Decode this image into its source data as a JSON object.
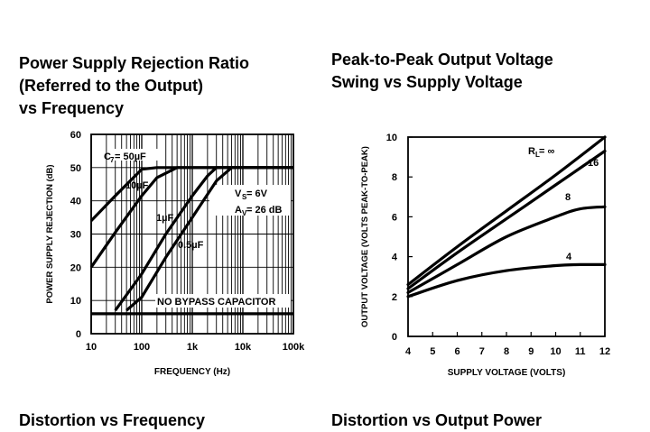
{
  "titles": {
    "psrr": [
      "Power Supply Rejection Ratio",
      "(Referred to the Output)",
      "vs Frequency"
    ],
    "swing": [
      "Peak-to-Peak Output Voltage",
      "Swing vs Supply Voltage"
    ],
    "dist_freq": "Distortion vs Frequency",
    "dist_power": "Distortion vs Output Power"
  },
  "chart_data": [
    {
      "type": "line",
      "title": "Power Supply Rejection Ratio (Referred to the Output) vs Frequency",
      "xlabel": "FREQUENCY (Hz)",
      "ylabel": "POWER SUPPLY REJECTION (dB)",
      "xscale": "log",
      "xlim": [
        10,
        100000
      ],
      "ylim": [
        0,
        60
      ],
      "xticks": [
        10,
        100,
        1000,
        10000,
        100000
      ],
      "xtick_labels": [
        "10",
        "100",
        "1k",
        "10k",
        "100k"
      ],
      "yticks": [
        0,
        10,
        20,
        30,
        40,
        50,
        60
      ],
      "grid": true,
      "annotations": {
        "conditions": [
          "V_S = 6V",
          "A_V = 26 dB"
        ],
        "no_bypass": "NO BYPASS CAPACITOR"
      },
      "series": [
        {
          "name": "C7 = 50µF",
          "x": [
            10,
            30,
            100,
            200,
            300,
            100000
          ],
          "y": [
            34,
            41.5,
            49.5,
            50,
            50,
            50
          ]
        },
        {
          "name": "10µF",
          "x": [
            10,
            30,
            100,
            200,
            500,
            1000,
            100000
          ],
          "y": [
            20,
            30.5,
            41.5,
            47,
            50,
            50,
            50
          ]
        },
        {
          "name": "1µF",
          "x": [
            30,
            100,
            300,
            1000,
            2000,
            3000,
            100000
          ],
          "y": [
            7,
            18,
            30,
            41.5,
            47.5,
            50,
            50
          ]
        },
        {
          "name": "0.5µF",
          "x": [
            50,
            100,
            300,
            1000,
            3000,
            6000,
            100000
          ],
          "y": [
            7,
            11,
            23,
            35,
            46,
            50,
            50
          ]
        },
        {
          "name": "NO BYPASS CAPACITOR",
          "x": [
            10,
            100000
          ],
          "y": [
            6,
            6
          ]
        }
      ]
    },
    {
      "type": "line",
      "title": "Peak-to-Peak Output Voltage Swing vs Supply Voltage",
      "xlabel": "SUPPLY VOLTAGE (VOLTS)",
      "ylabel": "OUTPUT VOLTAGE (VOLTS PEAK-TO-PEAK)",
      "xlim": [
        4,
        12
      ],
      "ylim": [
        0,
        10
      ],
      "xticks": [
        4,
        5,
        6,
        7,
        8,
        9,
        10,
        11,
        12
      ],
      "yticks": [
        0,
        2,
        4,
        6,
        8,
        10
      ],
      "grid": false,
      "series": [
        {
          "name": "RL = ∞",
          "x": [
            4,
            6,
            8,
            10,
            12
          ],
          "y": [
            2.6,
            4.5,
            6.3,
            8.1,
            10.0
          ]
        },
        {
          "name": "16",
          "x": [
            4,
            6,
            8,
            10,
            12
          ],
          "y": [
            2.4,
            4.2,
            5.9,
            7.6,
            9.3
          ]
        },
        {
          "name": "8",
          "x": [
            4,
            6,
            8,
            10,
            11,
            12
          ],
          "y": [
            2.2,
            3.6,
            5.0,
            6.0,
            6.4,
            6.5
          ]
        },
        {
          "name": "4",
          "x": [
            4,
            6,
            8,
            10,
            11,
            12
          ],
          "y": [
            2.0,
            2.8,
            3.3,
            3.55,
            3.6,
            3.6
          ]
        }
      ],
      "series_labels": [
        "RL = ∞",
        "16",
        "8",
        "4"
      ]
    }
  ]
}
